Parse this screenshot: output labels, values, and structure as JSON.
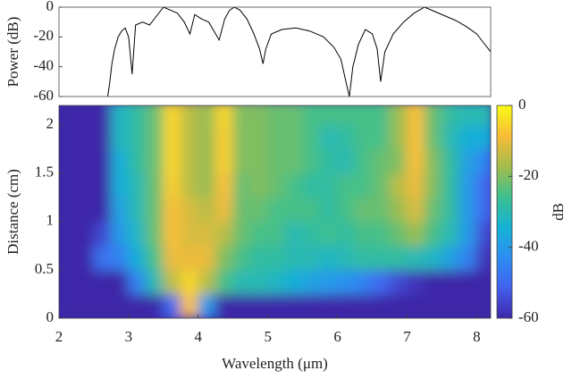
{
  "chart_data": [
    {
      "type": "line",
      "ylabel": "Power (dB)",
      "color": "#000000",
      "xlim": [
        2,
        8.2
      ],
      "ylim": [
        -60,
        0
      ],
      "yticks": [
        0,
        -20,
        -40,
        -60
      ],
      "x": [
        2.7,
        2.73,
        2.76,
        2.8,
        2.85,
        2.9,
        2.95,
        3.0,
        3.05,
        3.1,
        3.2,
        3.3,
        3.4,
        3.5,
        3.6,
        3.7,
        3.8,
        3.88,
        3.95,
        4.05,
        4.15,
        4.25,
        4.3,
        4.38,
        4.45,
        4.52,
        4.6,
        4.7,
        4.8,
        4.88,
        4.93,
        4.97,
        5.05,
        5.2,
        5.4,
        5.6,
        5.8,
        5.95,
        6.05,
        6.12,
        6.17,
        6.22,
        6.3,
        6.4,
        6.5,
        6.57,
        6.62,
        6.68,
        6.8,
        6.95,
        7.1,
        7.25,
        7.4,
        7.55,
        7.7,
        7.85,
        8.0,
        8.1,
        8.2
      ],
      "values": [
        -60,
        -50,
        -38,
        -28,
        -20,
        -16,
        -14,
        -20,
        -45,
        -12,
        -10,
        -12,
        -6,
        0,
        -2,
        -4,
        -10,
        -18,
        -5,
        -8,
        -10,
        -18,
        -22,
        -8,
        -2,
        0,
        -2,
        -8,
        -18,
        -28,
        -38,
        -28,
        -18,
        -15,
        -14,
        -16,
        -20,
        -27,
        -35,
        -50,
        -60,
        -40,
        -25,
        -15,
        -18,
        -28,
        -50,
        -30,
        -18,
        -10,
        -4,
        0,
        -3,
        -6,
        -9,
        -13,
        -18,
        -24,
        -30
      ]
    },
    {
      "type": "heatmap",
      "xlabel": "Wavelength (μm)",
      "ylabel": "Distance (cm)",
      "xlim": [
        2,
        8.2
      ],
      "ylim": [
        0,
        2.2
      ],
      "xticks": [
        2,
        3,
        4,
        5,
        6,
        7,
        8
      ],
      "yticks": [
        0,
        0.5,
        1,
        1.5,
        2
      ],
      "colormap": [
        "#3e26a8",
        "#4361ee",
        "#2c8ef2",
        "#16b2d6",
        "#3dc08e",
        "#a3bd4b",
        "#f9bc39",
        "#f9fb15"
      ],
      "colorbar": {
        "label": "dB",
        "clim": [
          -60,
          0
        ],
        "ticks": [
          0,
          -20,
          -40,
          -60
        ]
      },
      "x": [
        2.125,
        2.375,
        2.625,
        2.875,
        3.125,
        3.375,
        3.625,
        3.875,
        4.125,
        4.375,
        4.625,
        4.875,
        5.125,
        5.375,
        5.625,
        5.875,
        6.125,
        6.375,
        6.625,
        6.875,
        7.125,
        7.375,
        7.625,
        7.875,
        8.125
      ],
      "y": [
        0.125,
        0.375,
        0.625,
        0.875,
        1.125,
        1.375,
        1.625,
        1.875,
        2.125
      ],
      "z": [
        [
          -60,
          -60,
          -60,
          -60,
          -60,
          -60,
          -50,
          -8,
          -40,
          -60,
          -60,
          -60,
          -60,
          -60,
          -60,
          -60,
          -60,
          -60,
          -60,
          -60,
          -60,
          -60,
          -60,
          -60,
          -60
        ],
        [
          -60,
          -60,
          -60,
          -60,
          -45,
          -30,
          -15,
          -5,
          -15,
          -25,
          -30,
          -30,
          -32,
          -35,
          -38,
          -40,
          -42,
          -45,
          -50,
          -55,
          -58,
          -60,
          -60,
          -60,
          -60
        ],
        [
          -60,
          -60,
          -48,
          -45,
          -35,
          -25,
          -10,
          -10,
          -10,
          -20,
          -25,
          -28,
          -28,
          -30,
          -30,
          -32,
          -30,
          -28,
          -28,
          -28,
          -30,
          -32,
          -38,
          -45,
          -58
        ],
        [
          -60,
          -60,
          -55,
          -40,
          -32,
          -22,
          -8,
          -12,
          -12,
          -15,
          -22,
          -25,
          -25,
          -30,
          -28,
          -26,
          -28,
          -25,
          -25,
          -22,
          -18,
          -25,
          -30,
          -40,
          -55
        ],
        [
          -60,
          -60,
          -60,
          -38,
          -30,
          -22,
          -8,
          -12,
          -15,
          -10,
          -22,
          -22,
          -25,
          -25,
          -25,
          -28,
          -25,
          -22,
          -22,
          -18,
          -12,
          -22,
          -28,
          -40,
          -50
        ],
        [
          -60,
          -60,
          -60,
          -35,
          -30,
          -22,
          -6,
          -15,
          -18,
          -8,
          -22,
          -20,
          -22,
          -25,
          -28,
          -28,
          -25,
          -25,
          -22,
          -15,
          -10,
          -20,
          -28,
          -40,
          -50
        ],
        [
          -60,
          -60,
          -60,
          -35,
          -28,
          -22,
          -5,
          -15,
          -18,
          -6,
          -20,
          -20,
          -22,
          -22,
          -25,
          -28,
          -30,
          -25,
          -22,
          -20,
          -8,
          -20,
          -28,
          -38,
          -45
        ],
        [
          -60,
          -60,
          -60,
          -32,
          -28,
          -22,
          -5,
          -15,
          -18,
          -6,
          -20,
          -20,
          -22,
          -22,
          -25,
          -30,
          -28,
          -25,
          -25,
          -18,
          -8,
          -22,
          -30,
          -35,
          -35
        ],
        [
          -60,
          -60,
          -60,
          -32,
          -28,
          -22,
          -5,
          -15,
          -18,
          -5,
          -20,
          -20,
          -22,
          -22,
          -25,
          -25,
          -25,
          -25,
          -25,
          -18,
          -8,
          -22,
          -28,
          -30,
          -30
        ]
      ]
    }
  ]
}
